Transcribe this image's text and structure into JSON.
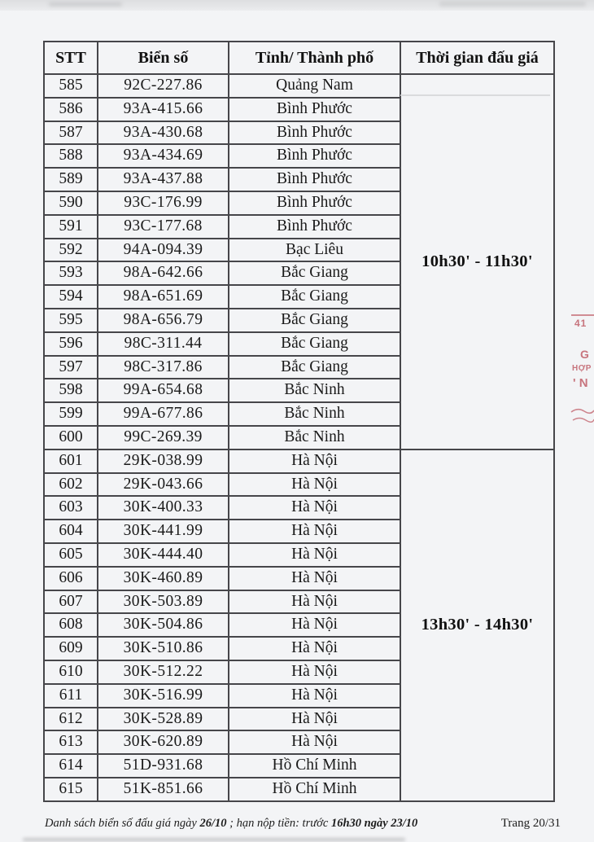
{
  "table": {
    "columns": [
      "STT",
      "Biển số",
      "Tỉnh/ Thành phố",
      "Thời gian đấu giá"
    ],
    "groups": [
      {
        "time": "10h30' - 11h30'",
        "rows": [
          {
            "stt": "585",
            "plate": "92C-227.86",
            "province": "Quảng Nam"
          },
          {
            "stt": "586",
            "plate": "93A-415.66",
            "province": "Bình Phước"
          },
          {
            "stt": "587",
            "plate": "93A-430.68",
            "province": "Bình Phước"
          },
          {
            "stt": "588",
            "plate": "93A-434.69",
            "province": "Bình Phước"
          },
          {
            "stt": "589",
            "plate": "93A-437.88",
            "province": "Bình Phước"
          },
          {
            "stt": "590",
            "plate": "93C-176.99",
            "province": "Bình Phước"
          },
          {
            "stt": "591",
            "plate": "93C-177.68",
            "province": "Bình Phước"
          },
          {
            "stt": "592",
            "plate": "94A-094.39",
            "province": "Bạc Liêu"
          },
          {
            "stt": "593",
            "plate": "98A-642.66",
            "province": "Bắc Giang"
          },
          {
            "stt": "594",
            "plate": "98A-651.69",
            "province": "Bắc Giang"
          },
          {
            "stt": "595",
            "plate": "98A-656.79",
            "province": "Bắc Giang"
          },
          {
            "stt": "596",
            "plate": "98C-311.44",
            "province": "Bắc Giang"
          },
          {
            "stt": "597",
            "plate": "98C-317.86",
            "province": "Bắc Giang"
          },
          {
            "stt": "598",
            "plate": "99A-654.68",
            "province": "Bắc Ninh"
          },
          {
            "stt": "599",
            "plate": "99A-677.86",
            "province": "Bắc Ninh"
          },
          {
            "stt": "600",
            "plate": "99C-269.39",
            "province": "Bắc Ninh"
          }
        ]
      },
      {
        "time": "13h30' - 14h30'",
        "rows": [
          {
            "stt": "601",
            "plate": "29K-038.99",
            "province": "Hà Nội"
          },
          {
            "stt": "602",
            "plate": "29K-043.66",
            "province": "Hà Nội"
          },
          {
            "stt": "603",
            "plate": "30K-400.33",
            "province": "Hà Nội"
          },
          {
            "stt": "604",
            "plate": "30K-441.99",
            "province": "Hà Nội"
          },
          {
            "stt": "605",
            "plate": "30K-444.40",
            "province": "Hà Nội"
          },
          {
            "stt": "606",
            "plate": "30K-460.89",
            "province": "Hà Nội"
          },
          {
            "stt": "607",
            "plate": "30K-503.89",
            "province": "Hà Nội"
          },
          {
            "stt": "608",
            "plate": "30K-504.86",
            "province": "Hà Nội"
          },
          {
            "stt": "609",
            "plate": "30K-510.86",
            "province": "Hà Nội"
          },
          {
            "stt": "610",
            "plate": "30K-512.22",
            "province": "Hà Nội"
          },
          {
            "stt": "611",
            "plate": "30K-516.99",
            "province": "Hà Nội"
          },
          {
            "stt": "612",
            "plate": "30K-528.89",
            "province": "Hà Nội"
          },
          {
            "stt": "613",
            "plate": "30K-620.89",
            "province": "Hà Nội"
          },
          {
            "stt": "614",
            "plate": "51D-931.68",
            "province": "Hồ Chí Minh"
          },
          {
            "stt": "615",
            "plate": "51K-851.66",
            "province": "Hồ Chí Minh"
          }
        ]
      }
    ]
  },
  "footer": {
    "left_parts": [
      {
        "text": "Danh sách biển số đấu giá ngày ",
        "bold": false
      },
      {
        "text": "26/10",
        "bold": true
      },
      {
        "text": " ; hạn nộp tiền: trước ",
        "bold": false
      },
      {
        "text": "16h30 ngày 23/10",
        "bold": true
      }
    ],
    "page_label": "Trang 20/31"
  },
  "stamp": {
    "color": "#bd5560",
    "fragments": {
      "num": "41",
      "g": "G",
      "hop": "HỢP",
      "n": "' N"
    }
  }
}
